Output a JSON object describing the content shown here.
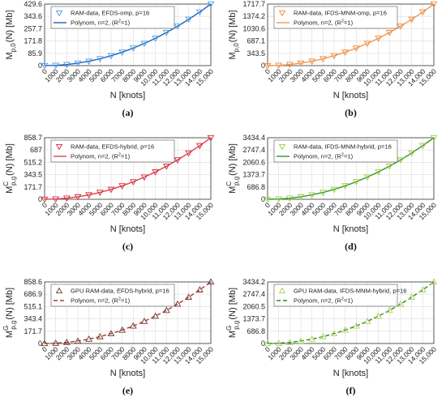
{
  "xlabel": "N [knots]",
  "x_ticks": [
    "0",
    "1000",
    "2000",
    "3000",
    "4000",
    "5000",
    "6000",
    "7000",
    "8000",
    "9000",
    "10,000",
    "11,000",
    "12,000",
    "13,000",
    "14,000",
    "15,000"
  ],
  "chart_data": [
    {
      "type": "line",
      "panel_label": "(a)",
      "ylabel_main": "M",
      "ylabel_sub": "p,0",
      "ylabel_sup": "",
      "ylabel_tail": "(N)  [Mb]",
      "xlabel": "N [knots]",
      "xlim": [
        0,
        15000
      ],
      "ylim": [
        0,
        429.6
      ],
      "y_ticks": [
        0,
        85.9,
        171.8,
        257.7,
        343.6,
        429.6
      ],
      "y_tick_labels": [
        "0",
        "85.9",
        "171.8",
        "257.7",
        "343.6",
        "429.6"
      ],
      "x": [
        0,
        1000,
        2000,
        3000,
        4000,
        5000,
        6000,
        7000,
        8000,
        9000,
        10000,
        11000,
        12000,
        13000,
        14000,
        15000
      ],
      "series": [
        {
          "name": "RAM-data, EFDS-omp, p=16",
          "kind": "markers",
          "marker": "triangle-down",
          "values": [
            0.1,
            2.0,
            7.7,
            17.1,
            30.6,
            47.8,
            68.8,
            93.6,
            122.2,
            154.7,
            190.9,
            231.1,
            275.0,
            322.8,
            374.3,
            429.6
          ]
        },
        {
          "name": "Polynom, n=2, (R",
          "name_sup": "2",
          "name_tail": "=1)",
          "kind": "line",
          "style": "solid",
          "values": [
            0.1,
            2.0,
            7.7,
            17.1,
            30.6,
            47.8,
            68.8,
            93.6,
            122.2,
            154.7,
            190.9,
            231.1,
            275.0,
            322.8,
            374.3,
            429.6
          ]
        }
      ],
      "colors": {
        "marker": "#4a9ee8",
        "line": "#1f5fbf"
      }
    },
    {
      "type": "line",
      "panel_label": "(b)",
      "ylabel_main": "M",
      "ylabel_sub": "p,0",
      "ylabel_sup": "",
      "ylabel_tail": "(N)  [Mb]",
      "xlabel": "N [knots]",
      "xlim": [
        0,
        15000
      ],
      "ylim": [
        0,
        1717.7
      ],
      "y_ticks": [
        0,
        343.5,
        687.1,
        1030.6,
        1374.2,
        1717.7
      ],
      "y_tick_labels": [
        "0",
        "343.5",
        "687.1",
        "1030.6",
        "1374.2",
        "1717.7"
      ],
      "x": [
        0,
        1000,
        2000,
        3000,
        4000,
        5000,
        6000,
        7000,
        8000,
        9000,
        10000,
        11000,
        12000,
        13000,
        14000,
        15000
      ],
      "series": [
        {
          "name": "RAM-data, IFDS-MNM-omp, p=16",
          "kind": "markers",
          "marker": "triangle-down",
          "values": [
            0.2,
            7.8,
            30.7,
            68.7,
            122.2,
            190.9,
            274.9,
            374.2,
            488.7,
            618.5,
            763.5,
            923.8,
            1099.4,
            1290.1,
            1496.4,
            1717.7
          ]
        },
        {
          "name": "Polynom, n=2, (R",
          "name_sup": "2",
          "name_tail": "=1)",
          "kind": "line",
          "style": "solid",
          "values": [
            0.2,
            7.8,
            30.7,
            68.7,
            122.2,
            190.9,
            274.9,
            374.2,
            488.7,
            618.5,
            763.5,
            923.8,
            1099.4,
            1290.1,
            1496.4,
            1717.7
          ]
        }
      ],
      "colors": {
        "marker": "#f0883a",
        "line": "#f29a4f"
      }
    },
    {
      "type": "line",
      "panel_label": "(c)",
      "ylabel_main": "M",
      "ylabel_sub": "p,g",
      "ylabel_sup": "C",
      "ylabel_tail": "(N)  [Mb]",
      "xlabel": "N [knots]",
      "xlim": [
        0,
        15000
      ],
      "ylim": [
        0,
        858.7
      ],
      "y_ticks": [
        0,
        171.7,
        343.5,
        515.2,
        687,
        858.7
      ],
      "y_tick_labels": [
        "0",
        "171.7",
        "343.5",
        "515.2",
        "687",
        "858.7"
      ],
      "x": [
        0,
        1000,
        2000,
        3000,
        4000,
        5000,
        6000,
        7000,
        8000,
        9000,
        10000,
        11000,
        12000,
        13000,
        14000,
        15000
      ],
      "series": [
        {
          "name": "RAM-data, EFDS-hybrid, p=16",
          "kind": "markers",
          "marker": "triangle-down",
          "values": [
            0.3,
            4.1,
            15.5,
            34.5,
            61.2,
            95.5,
            137.5,
            187.2,
            244.5,
            309.4,
            381.8,
            462.0,
            549.6,
            645.0,
            747.9,
            858.7
          ]
        },
        {
          "name": "Polynom, n=2, (R",
          "name_sup": "2",
          "name_tail": "=1)",
          "kind": "line",
          "style": "solid",
          "values": [
            0.3,
            4.1,
            15.5,
            34.5,
            61.2,
            95.5,
            137.5,
            187.2,
            244.5,
            309.4,
            381.8,
            462.0,
            549.6,
            645.0,
            747.9,
            858.7
          ]
        }
      ],
      "colors": {
        "marker": "#d62a3a",
        "line": "#e0404c"
      }
    },
    {
      "type": "line",
      "panel_label": "(d)",
      "ylabel_main": "M",
      "ylabel_sub": "p,g",
      "ylabel_sup": "C",
      "ylabel_tail": "(N)  [Mb]",
      "xlabel": "N [knots]",
      "xlim": [
        0,
        15000
      ],
      "ylim": [
        0,
        3434.4
      ],
      "y_ticks": [
        0,
        686.8,
        1373.7,
        2060.6,
        2747.4,
        3434.4
      ],
      "y_tick_labels": [
        "0",
        "686.8",
        "1373.7",
        "2060.6",
        "2747.4",
        "3434.4"
      ],
      "x": [
        0,
        1000,
        2000,
        3000,
        4000,
        5000,
        6000,
        7000,
        8000,
        9000,
        10000,
        11000,
        12000,
        13000,
        14000,
        15000
      ],
      "series": [
        {
          "name": "RAM-data, IFDS-MNM-hybrid, p=16",
          "kind": "markers",
          "marker": "triangle-down",
          "values": [
            0.5,
            15.7,
            61.4,
            137.6,
            244.2,
            381.6,
            549.4,
            747.8,
            976.8,
            1236.5,
            1526.5,
            1846.9,
            2198.0,
            2579.4,
            2991.4,
            3434.4
          ]
        },
        {
          "name": "Polynom, n=2, (R",
          "name_sup": "2",
          "name_tail": "=1)",
          "kind": "line",
          "style": "solid",
          "values": [
            0.5,
            15.7,
            61.4,
            137.6,
            244.2,
            381.6,
            549.4,
            747.8,
            976.8,
            1236.5,
            1526.5,
            1846.9,
            2198.0,
            2579.4,
            2991.4,
            3434.4
          ]
        }
      ],
      "colors": {
        "marker": "#9ccc3c",
        "line": "#2a9a2a"
      }
    },
    {
      "type": "line",
      "panel_label": "(e)",
      "ylabel_main": "M",
      "ylabel_sub": "p,g",
      "ylabel_sup": "G",
      "ylabel_tail": "(N)  [Mb]",
      "xlabel": "N [knots]",
      "xlim": [
        0,
        15000
      ],
      "ylim": [
        0,
        858.6
      ],
      "y_ticks": [
        0,
        171.7,
        343.4,
        515.1,
        686.9,
        858.6
      ],
      "y_tick_labels": [
        "0",
        "171.7",
        "343.4",
        "515.1",
        "686.9",
        "858.6"
      ],
      "x": [
        0,
        1000,
        2000,
        3000,
        4000,
        5000,
        6000,
        7000,
        8000,
        9000,
        10000,
        11000,
        12000,
        13000,
        14000,
        15000
      ],
      "series": [
        {
          "name": "GPU RAM-data, EFDS-hybrid, p=16",
          "kind": "markers",
          "marker": "triangle-up",
          "values": [
            0.3,
            4.1,
            15.5,
            34.4,
            61.2,
            95.5,
            137.4,
            187.1,
            244.4,
            309.3,
            381.7,
            461.9,
            549.6,
            644.9,
            747.9,
            858.6
          ]
        },
        {
          "name": "Polynom, n=2, (R",
          "name_sup": "2",
          "name_tail": "=1)",
          "kind": "line",
          "style": "dashed",
          "values": [
            0.3,
            4.1,
            15.5,
            34.4,
            61.2,
            95.5,
            137.4,
            187.1,
            244.4,
            309.3,
            381.7,
            461.9,
            549.6,
            644.9,
            747.9,
            858.6
          ]
        }
      ],
      "colors": {
        "marker": "#6a3a30",
        "line": "#b23a30"
      }
    },
    {
      "type": "line",
      "panel_label": "(f)",
      "ylabel_main": "M",
      "ylabel_sub": "p,g",
      "ylabel_sup": "G",
      "ylabel_tail": "(N)  [Mb]",
      "xlabel": "N [knots]",
      "xlim": [
        0,
        15000
      ],
      "ylim": [
        0,
        3434.2
      ],
      "y_ticks": [
        0,
        686.8,
        1373.7,
        2060.5,
        2747.4,
        3434.2
      ],
      "y_tick_labels": [
        "0",
        "686.8",
        "1373.7",
        "2060.5",
        "2747.4",
        "3434.2"
      ],
      "x": [
        0,
        1000,
        2000,
        3000,
        4000,
        5000,
        6000,
        7000,
        8000,
        9000,
        10000,
        11000,
        12000,
        13000,
        14000,
        15000
      ],
      "series": [
        {
          "name": "GPU RAM-data, IFDS-MNM-hybrid, p=16",
          "kind": "markers",
          "marker": "triangle-up",
          "values": [
            0.5,
            15.7,
            61.4,
            137.6,
            244.2,
            381.6,
            549.4,
            747.8,
            976.8,
            1236.4,
            1526.4,
            1846.8,
            2197.9,
            2579.3,
            2991.3,
            3434.2
          ]
        },
        {
          "name": "Polynom, n=2, (R",
          "name_sup": "2",
          "name_tail": "=1)",
          "kind": "line",
          "style": "dashed",
          "values": [
            0.5,
            15.7,
            61.4,
            137.6,
            244.2,
            381.6,
            549.4,
            747.8,
            976.8,
            1236.4,
            1526.4,
            1846.8,
            2197.9,
            2579.3,
            2991.3,
            3434.2
          ]
        }
      ],
      "colors": {
        "marker": "#a8d45a",
        "line": "#2f8a1f"
      }
    }
  ]
}
